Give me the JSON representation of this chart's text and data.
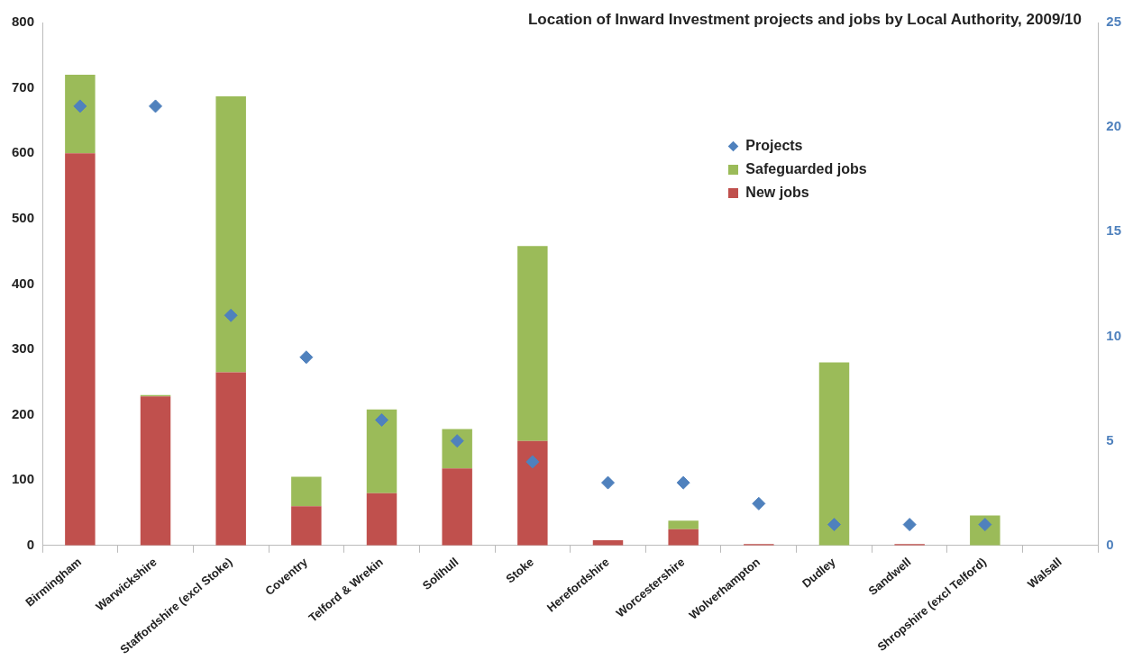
{
  "chart_data": {
    "type": "bar",
    "stacked": true,
    "title": "Location of Inward Investment projects and jobs by Local Authority, 2009/10",
    "categories": [
      "Birmingham",
      "Warwickshire",
      "Staffordshire (excl Stoke)",
      "Coventry",
      "Telford & Wrekin",
      "Solihull",
      "Stoke",
      "Herefordshire",
      "Worcestershire",
      "Wolverhampton",
      "Dudley",
      "Sandwell",
      "Shropshire (excl Telford)",
      "Walsall"
    ],
    "series": [
      {
        "name": "New jobs",
        "color": "#c0504d",
        "values": [
          600,
          228,
          265,
          60,
          80,
          118,
          160,
          8,
          25,
          2,
          0,
          2,
          0,
          0
        ]
      },
      {
        "name": "Safeguarded jobs",
        "color": "#9bbb59",
        "values": [
          120,
          2,
          422,
          45,
          128,
          60,
          298,
          0,
          13,
          0,
          280,
          0,
          46,
          0
        ]
      },
      {
        "name": "Projects",
        "type": "scatter",
        "axis": "y2",
        "color": "#4f81bd",
        "values": [
          21,
          21,
          11,
          9,
          6,
          5,
          4,
          3,
          3,
          2,
          1,
          1,
          1,
          null
        ]
      }
    ],
    "ylim": [
      0,
      800
    ],
    "yticks": [
      0,
      100,
      200,
      300,
      400,
      500,
      600,
      700,
      800
    ],
    "y2lim": [
      0,
      25
    ],
    "y2ticks": [
      0,
      5,
      10,
      15,
      20,
      25
    ],
    "grid": false,
    "legend": "top right",
    "marker": "diamond"
  }
}
